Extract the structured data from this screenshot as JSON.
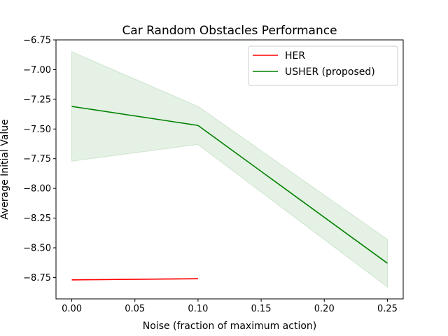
{
  "chart_data": {
    "type": "line",
    "title": "Car Random Obstacles Performance",
    "xlabel": "Noise (fraction of maximum action)",
    "ylabel": "Average Initial Value",
    "xlim": [
      -0.0125,
      0.2625
    ],
    "ylim": [
      -8.93,
      -6.75
    ],
    "xticks": [
      0.0,
      0.05,
      0.1,
      0.15,
      0.2,
      0.25
    ],
    "xtick_labels": [
      "0.00",
      "0.05",
      "0.10",
      "0.15",
      "0.20",
      "0.25"
    ],
    "yticks": [
      -6.75,
      -7.0,
      -7.25,
      -7.5,
      -7.75,
      -8.0,
      -8.25,
      -8.5,
      -8.75
    ],
    "ytick_labels": [
      "−6.75",
      "−7.00",
      "−7.25",
      "−7.50",
      "−7.75",
      "−8.00",
      "−8.25",
      "−8.50",
      "−8.75"
    ],
    "grid": false,
    "legend_position": "top-right",
    "series": [
      {
        "name": "HER",
        "color": "#ff0000",
        "x": [
          0.0,
          0.1
        ],
        "y": [
          -8.77,
          -8.76
        ],
        "lower": [
          -8.775,
          -8.765
        ],
        "upper": [
          -8.765,
          -8.755
        ]
      },
      {
        "name": "USHER (proposed)",
        "color": "#008000",
        "band_color": "#e1f0e1",
        "x": [
          0.0,
          0.1,
          0.25
        ],
        "y": [
          -7.31,
          -7.47,
          -8.63
        ],
        "lower": [
          -7.77,
          -7.63,
          -8.83
        ],
        "upper": [
          -6.85,
          -7.31,
          -8.43
        ]
      }
    ]
  }
}
